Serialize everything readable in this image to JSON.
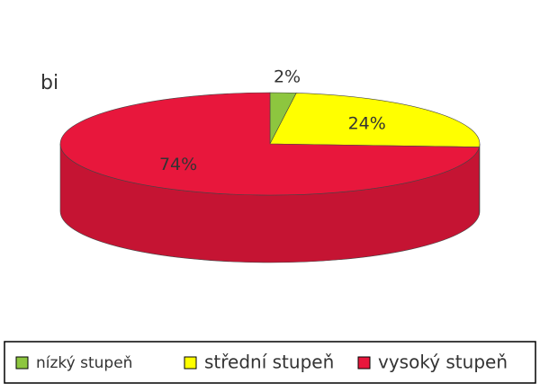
{
  "chart_data": {
    "type": "pie3d",
    "title": "bi",
    "categories": [
      "nízký stupeň",
      "střední stupeň",
      "vysoký stupeň"
    ],
    "values": [
      2,
      24,
      74
    ],
    "value_labels": [
      "2%",
      "24%",
      "74%"
    ],
    "colors": [
      "#8dc63f",
      "#ffff00",
      "#e8173c"
    ],
    "legend": "bottom"
  }
}
